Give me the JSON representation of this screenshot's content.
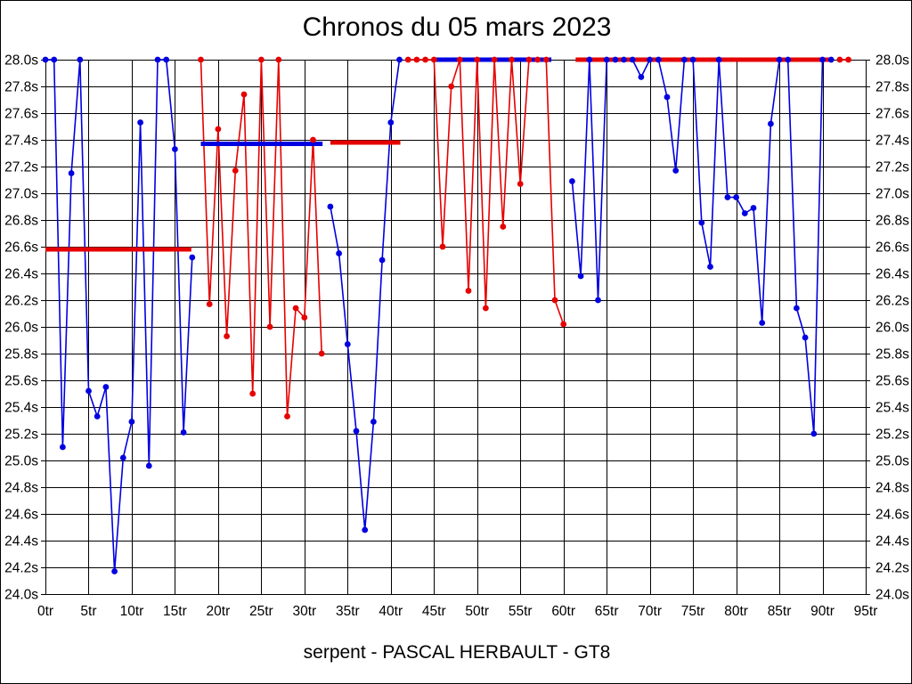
{
  "window": {
    "background": "#ffffff",
    "border_color": "#000000"
  },
  "header": {
    "title": "Chronos du 05 mars 2023"
  },
  "footer": {
    "caption": "serpent - PASCAL HERBAULT - GT8"
  },
  "chart_data": {
    "type": "line",
    "title": "Chronos du 05 mars 2023",
    "caption": "serpent - PASCAL HERBAULT - GT8",
    "x_unit": "tr",
    "y_unit": "s",
    "xlim": [
      0,
      95
    ],
    "ylim": [
      24.0,
      28.0
    ],
    "y_tick_step": 0.2,
    "x_tick_step": 5,
    "grid": true,
    "values_clipped_at": 28.0,
    "x_tick_labels": [
      "0tr",
      "5tr",
      "10tr",
      "15tr",
      "20tr",
      "25tr",
      "30tr",
      "35tr",
      "40tr",
      "45tr",
      "50tr",
      "55tr",
      "60tr",
      "65tr",
      "70tr",
      "75tr",
      "80tr",
      "85tr",
      "90tr",
      "95tr"
    ],
    "y_tick_labels": [
      "28.0s",
      "27.8s",
      "27.6s",
      "27.4s",
      "27.2s",
      "27.0s",
      "26.8s",
      "26.6s",
      "26.4s",
      "26.2s",
      "26.0s",
      "25.8s",
      "25.6s",
      "25.4s",
      "25.2s",
      "25.0s",
      "24.8s",
      "24.6s",
      "24.4s",
      "24.2s",
      "24.0s"
    ],
    "series_colors": {
      "blue": "#0000e0",
      "red": "#e60000"
    },
    "grid_color": "#000000",
    "stints": [
      {
        "series": "blue",
        "start_lap": 0,
        "values": [
          28.0,
          28.0,
          25.1,
          27.15,
          28.0,
          25.52,
          25.33,
          25.55,
          24.17,
          25.02,
          25.29,
          27.53,
          24.96,
          28.0,
          28.0,
          27.33,
          25.21,
          26.52
        ]
      },
      {
        "series": "red",
        "start_lap": 18,
        "values": [
          28.0,
          26.17,
          27.48,
          25.93,
          27.17,
          27.74,
          25.5,
          28.0,
          26.0,
          28.0,
          25.33,
          26.14,
          26.07,
          27.4,
          25.8
        ]
      },
      {
        "series": "blue",
        "start_lap": 33,
        "values": [
          26.9,
          26.55,
          25.87,
          25.22,
          24.48,
          25.29,
          26.5,
          27.53,
          28.0
        ]
      },
      {
        "series": "red",
        "start_lap": 42,
        "values": [
          28.0,
          28.0,
          28.0,
          28.0,
          26.6,
          27.8,
          28.0,
          26.27,
          28.0,
          26.14,
          28.0,
          26.75,
          28.0,
          27.07,
          28.0,
          28.0,
          28.0,
          26.2,
          26.02
        ]
      },
      {
        "series": "blue",
        "start_lap": 61,
        "values": [
          27.09,
          26.38,
          28.0,
          26.2,
          28.0,
          28.0,
          28.0,
          28.0,
          27.87,
          28.0,
          28.0,
          27.72,
          27.17,
          28.0,
          28.0,
          26.78,
          26.45,
          28.0,
          26.97,
          26.97,
          26.85,
          26.89,
          26.03,
          27.52,
          28.0,
          28.0,
          26.14,
          25.92,
          25.2,
          28.0,
          28.0
        ]
      },
      {
        "series": "red",
        "start_lap": 92,
        "values": [
          28.0,
          28.0
        ]
      }
    ],
    "reference_lines": [
      {
        "series": "red",
        "from_lap": 0.0,
        "to_lap": 16.9,
        "value": 26.58
      },
      {
        "series": "blue",
        "from_lap": 18.0,
        "to_lap": 32.1,
        "value": 27.37
      },
      {
        "series": "red",
        "from_lap": 33.0,
        "to_lap": 41.1,
        "value": 27.38
      },
      {
        "series": "blue",
        "from_lap": 45.0,
        "to_lap": 58.6,
        "value": 28.0
      },
      {
        "series": "red",
        "from_lap": 61.4,
        "to_lap": 90.8,
        "value": 28.0
      }
    ]
  }
}
